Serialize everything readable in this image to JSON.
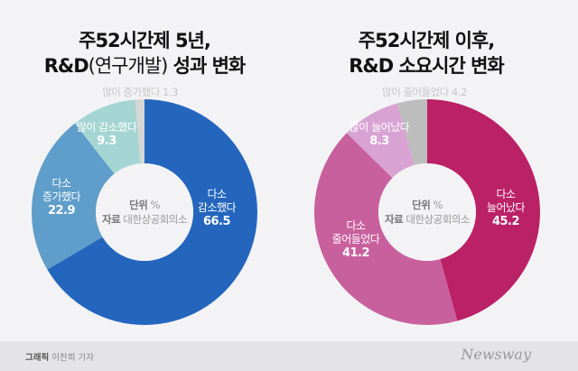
{
  "chart_data": [
    {
      "type": "pie",
      "title_line1": "주52시간제 5년,",
      "title_line2a": "R&D",
      "title_line2b": "(연구개발)",
      "title_line2c": " 성과 변화",
      "unit_label": "단위",
      "unit": "%",
      "source_label": "자료",
      "source": "대한상공회의소",
      "slices": [
        {
          "label1": "다소",
          "label2": "감소했다",
          "value": 66.5,
          "color": "#2466be"
        },
        {
          "label1": "다소",
          "label2": "증가했다",
          "value": 22.9,
          "color": "#5f9dca"
        },
        {
          "label1": "많이 감소했다",
          "label2": "",
          "value": 9.3,
          "color": "#a4d5d2"
        },
        {
          "label1": "많이 증가했다",
          "label2": "",
          "value": 1.3,
          "color": "#d6d6d6"
        }
      ]
    },
    {
      "type": "pie",
      "title_line1": "주52시간제 이후,",
      "title_line2a": "R&D 소요시간 변화",
      "unit_label": "단위",
      "unit": "%",
      "source_label": "자료",
      "source": "대한상공회의소",
      "slices": [
        {
          "label1": "다소",
          "label2": "늘어났다",
          "value": 45.2,
          "color": "#bb2166"
        },
        {
          "label1": "다소",
          "label2": "줄어들었다",
          "value": 41.2,
          "color": "#c9609e"
        },
        {
          "label1": "많이 늘어났다",
          "label2": "",
          "value": 8.3,
          "color": "#d8a3d3"
        },
        {
          "label1": "많이 줄어들었다",
          "label2": "",
          "value": 4.2,
          "color": "#bdbdbd"
        }
      ]
    }
  ],
  "footer": {
    "credit_label": "그래픽",
    "credit_name": "이찬희 기자",
    "logo": "Newsway"
  }
}
